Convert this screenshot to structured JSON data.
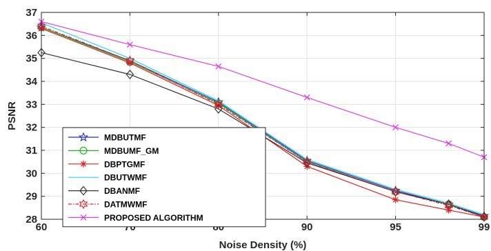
{
  "chart_data": {
    "type": "line",
    "title": "",
    "xlabel": "Noise Density (%)",
    "ylabel": "PSNR",
    "x": [
      60,
      70,
      80,
      90,
      95,
      97,
      99
    ],
    "xticks": [
      "60",
      "70",
      "80",
      "90",
      "95",
      "99"
    ],
    "ylim": [
      28,
      37
    ],
    "yticks": [
      "28",
      "29",
      "30",
      "31",
      "32",
      "33",
      "34",
      "35",
      "36",
      "37"
    ],
    "grid": true,
    "legend_position": "bottom-left",
    "series": [
      {
        "name": "MDBUTMF",
        "marker": "star",
        "color": "#1f2fbf",
        "values": [
          36.35,
          34.9,
          33.1,
          30.55,
          29.25,
          28.65,
          28.15
        ]
      },
      {
        "name": "MDBUMF_GM",
        "marker": "circle",
        "color": "#22b422",
        "values": [
          36.35,
          34.85,
          33.05,
          30.5,
          29.2,
          28.65,
          28.1
        ]
      },
      {
        "name": "DBPTGMF",
        "marker": "asterisk",
        "color": "#e02020",
        "values": [
          36.3,
          34.8,
          32.95,
          30.3,
          28.85,
          28.4,
          28.1
        ]
      },
      {
        "name": "DBUTWMF",
        "marker": "none",
        "color": "#2ad4e6",
        "values": [
          36.55,
          35.0,
          33.15,
          30.6,
          29.3,
          28.7,
          28.2
        ]
      },
      {
        "name": "DBANMF",
        "marker": "diamond",
        "color": "#333333",
        "values": [
          35.25,
          34.3,
          32.8,
          30.45,
          29.2,
          28.65,
          28.1
        ]
      },
      {
        "name": "DATMWMF",
        "marker": "hexagram",
        "color": "#e02020",
        "dashed": true,
        "values": [
          36.4,
          34.9,
          33.0,
          30.5,
          29.2,
          28.6,
          28.1
        ]
      },
      {
        "name": "PROPOSED ALGORITHM",
        "marker": "x",
        "color": "#e040e0",
        "values": [
          36.6,
          35.6,
          34.65,
          33.3,
          32.0,
          31.3,
          30.7
        ]
      }
    ]
  }
}
